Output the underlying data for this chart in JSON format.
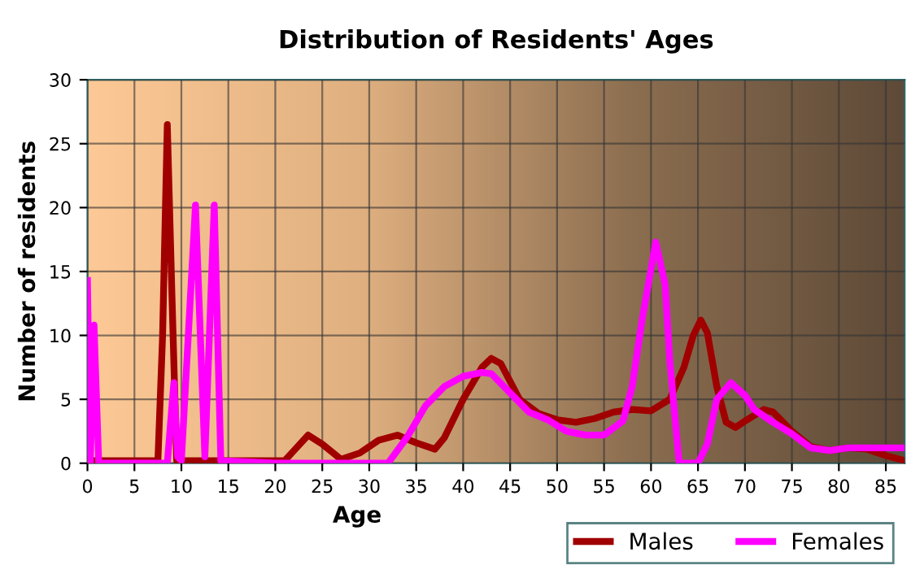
{
  "chart_data": {
    "type": "line",
    "title": "Distribution of Residents' Ages",
    "xlabel": "Age",
    "ylabel": "Number of residents",
    "xlim": [
      0,
      87
    ],
    "xticks": [
      0,
      5,
      10,
      15,
      20,
      25,
      30,
      35,
      40,
      45,
      50,
      55,
      60,
      65,
      70,
      75,
      80,
      85
    ],
    "ylim": [
      0,
      30
    ],
    "yticks": [
      0,
      5,
      10,
      15,
      20,
      25,
      30
    ],
    "grid": true,
    "legend": "bottom right",
    "line_style": "solid",
    "series": [
      {
        "name": "Males",
        "color": "#a00000",
        "x": [
          0,
          7.5,
          8,
          8.5,
          9,
          9.5,
          10,
          20,
          21,
          22,
          23.5,
          25,
          27,
          29,
          31,
          33,
          35,
          37,
          38,
          40,
          42,
          43,
          44,
          46,
          48,
          50,
          52,
          54,
          56,
          58,
          60,
          62,
          63.5,
          64.5,
          65.3,
          66,
          67,
          68,
          69,
          70,
          72,
          73,
          75,
          77,
          79,
          81,
          83,
          85,
          87
        ],
        "values": [
          0.2,
          0.2,
          10,
          26.5,
          13,
          0.2,
          0.2,
          0.2,
          0.2,
          1,
          2.2,
          1.5,
          0.3,
          0.8,
          1.8,
          2.2,
          1.6,
          1.1,
          2,
          5,
          7.5,
          8.2,
          7.8,
          5,
          3.9,
          3.4,
          3.2,
          3.5,
          4,
          4.2,
          4.1,
          5,
          7.5,
          10,
          11.2,
          10.2,
          6,
          3.2,
          2.8,
          3.3,
          4.2,
          4,
          2.5,
          1.3,
          1,
          1.2,
          1.1,
          0.6,
          0.2
        ]
      },
      {
        "name": "Females",
        "color": "#ff00ff",
        "x": [
          0,
          0.3,
          0.7,
          1.2,
          2,
          8.5,
          9.2,
          9.6,
          10,
          11.5,
          12.5,
          13.5,
          14.2,
          20,
          25,
          30,
          32,
          34,
          36,
          38,
          40,
          42,
          43,
          45,
          47,
          49,
          51,
          53,
          55,
          57,
          58,
          59,
          60.5,
          61.5,
          62,
          63,
          65,
          66,
          67,
          68.5,
          70,
          71,
          73,
          75,
          77,
          79,
          81,
          83,
          85,
          87
        ],
        "values": [
          14.3,
          0,
          10.8,
          0,
          0,
          0,
          6.3,
          0.5,
          0.2,
          20.2,
          0.5,
          20.2,
          0.2,
          0,
          0,
          0,
          0,
          2,
          4.5,
          6,
          6.8,
          7.1,
          7,
          5.5,
          4,
          3.4,
          2.5,
          2.2,
          2.2,
          3.3,
          6,
          11,
          17.3,
          14,
          8,
          0,
          0,
          1.5,
          5,
          6.3,
          5.3,
          4.2,
          3.2,
          2.3,
          1.2,
          1,
          1.2,
          1.2,
          1.2,
          1.2
        ]
      }
    ]
  }
}
